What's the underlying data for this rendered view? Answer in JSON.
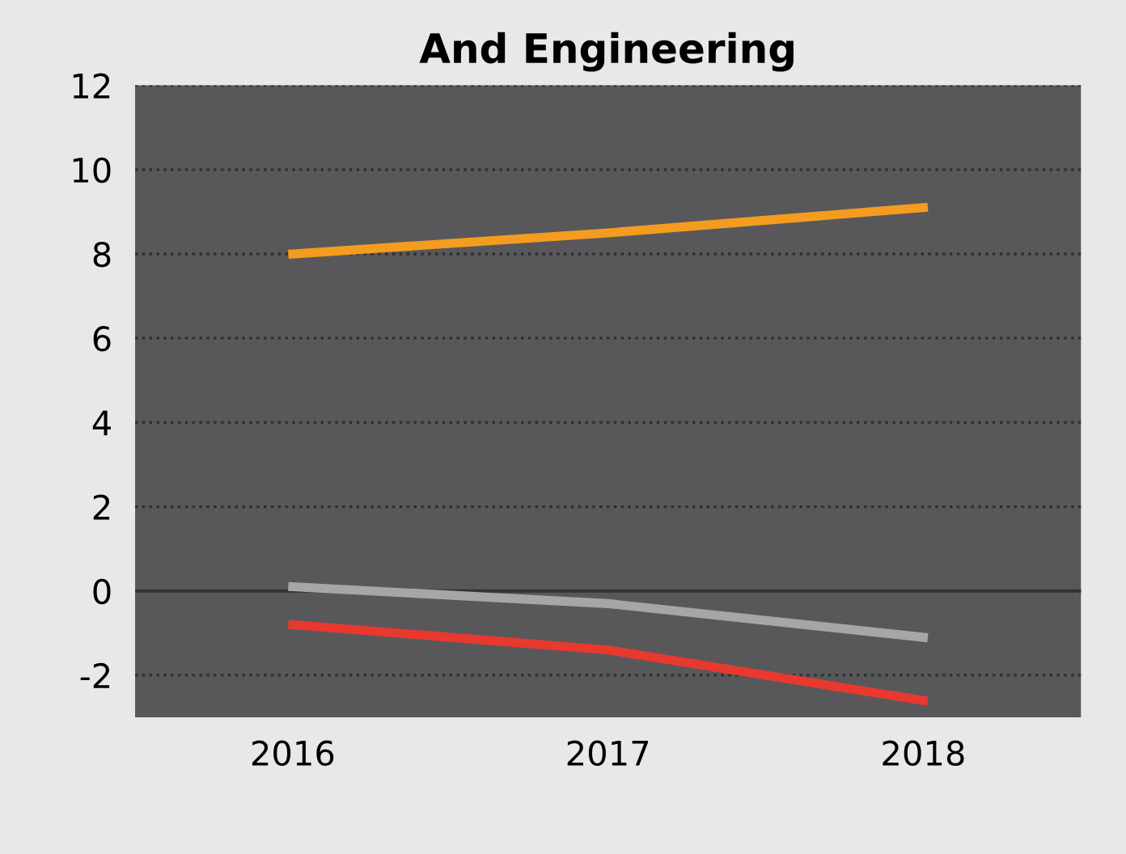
{
  "chart_data": {
    "type": "line",
    "title": "And Engineering",
    "categories": [
      "2016",
      "2017",
      "2018"
    ],
    "series": [
      {
        "color": "#f39c1f",
        "values": [
          8.0,
          8.5,
          9.1
        ]
      },
      {
        "color": "#a6a6a6",
        "values": [
          0.1,
          -0.3,
          -1.1
        ]
      },
      {
        "color": "#e8392f",
        "values": [
          -0.8,
          -1.4,
          -2.6
        ]
      }
    ],
    "ylim": [
      -3,
      12
    ],
    "yticks": [
      -2,
      0,
      2,
      4,
      6,
      8,
      10,
      12
    ],
    "grid": "y",
    "line_style": "solid",
    "marker": "none",
    "ref_lines": [
      {
        "axis": "y",
        "value": 0,
        "color": "#333335"
      }
    ]
  }
}
